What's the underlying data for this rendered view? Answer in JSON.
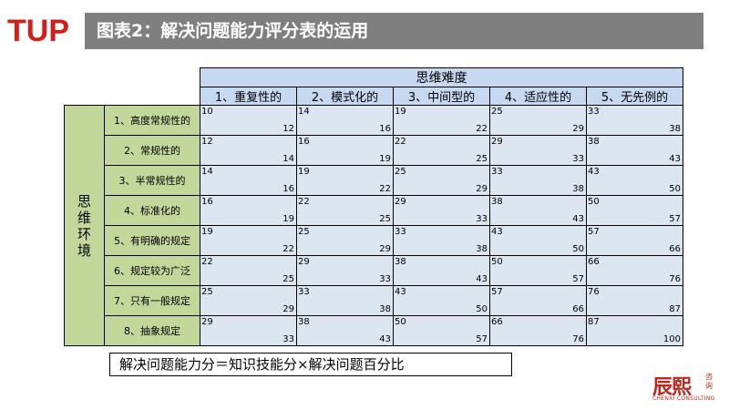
{
  "logo": {
    "text": "TUP",
    "colors": {
      "red": "#d0201c"
    }
  },
  "header": {
    "title": "图表2：解决问题能力评分表的运用"
  },
  "table": {
    "main_header": "思维难度",
    "columns": [
      "1、重复性的",
      "2、模式化的",
      "3、中间型的",
      "4、适应性的",
      "5、无先例的"
    ],
    "env_label": "思维环境",
    "rows": [
      {
        "label": "1、高度常规性的",
        "cells": [
          [
            "10",
            "12"
          ],
          [
            "14",
            "16"
          ],
          [
            "19",
            "22"
          ],
          [
            "25",
            "29"
          ],
          [
            "33",
            "38"
          ]
        ]
      },
      {
        "label": "2、常规性的",
        "cells": [
          [
            "12",
            "14"
          ],
          [
            "16",
            "19"
          ],
          [
            "22",
            "25"
          ],
          [
            "29",
            "33"
          ],
          [
            "38",
            "43"
          ]
        ]
      },
      {
        "label": "3、半常规性的",
        "cells": [
          [
            "14",
            "16"
          ],
          [
            "19",
            "22"
          ],
          [
            "25",
            "29"
          ],
          [
            "33",
            "38"
          ],
          [
            "43",
            "50"
          ]
        ]
      },
      {
        "label": "4、标准化的",
        "cells": [
          [
            "16",
            "19"
          ],
          [
            "22",
            "25"
          ],
          [
            "29",
            "33"
          ],
          [
            "38",
            "43"
          ],
          [
            "50",
            "57"
          ]
        ]
      },
      {
        "label": "5、有明确的规定",
        "cells": [
          [
            "19",
            "22"
          ],
          [
            "25",
            "29"
          ],
          [
            "33",
            "38"
          ],
          [
            "43",
            "50"
          ],
          [
            "57",
            "66"
          ]
        ]
      },
      {
        "label": "6、规定较为广泛",
        "cells": [
          [
            "22",
            "25"
          ],
          [
            "29",
            "33"
          ],
          [
            "38",
            "43"
          ],
          [
            "50",
            "57"
          ],
          [
            "66",
            "76"
          ]
        ]
      },
      {
        "label": "7、只有一般规定",
        "cells": [
          [
            "25",
            "29"
          ],
          [
            "33",
            "38"
          ],
          [
            "43",
            "50"
          ],
          [
            "57",
            "66"
          ],
          [
            "76",
            "87"
          ]
        ]
      },
      {
        "label": "8、抽象规定",
        "cells": [
          [
            "29",
            "33"
          ],
          [
            "38",
            "43"
          ],
          [
            "50",
            "57"
          ],
          [
            "66",
            "76"
          ],
          [
            "87",
            "100"
          ]
        ]
      }
    ]
  },
  "formula": "解决问题能力分＝知识技能分×解决问题百分比",
  "brand": {
    "name": "辰熙",
    "sub": "咨询",
    "en": "CHENXI CONSULTING"
  }
}
